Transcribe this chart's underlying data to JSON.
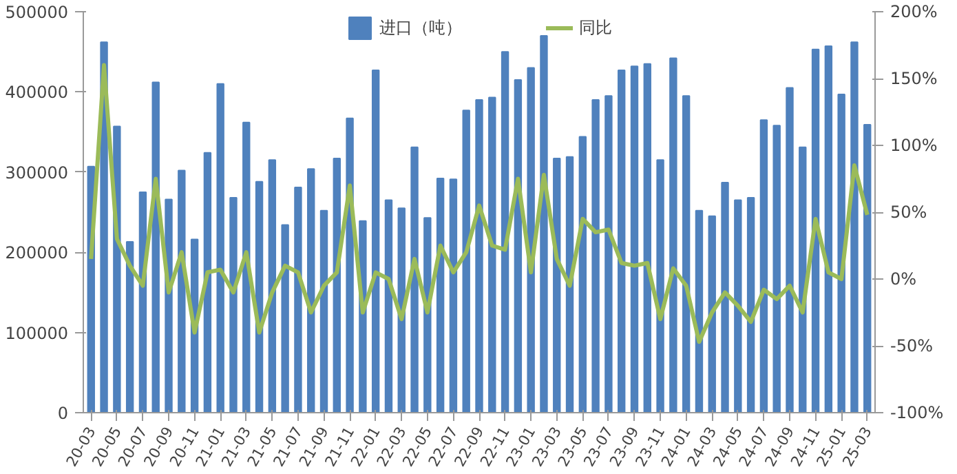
{
  "chart_data": {
    "type": "bar",
    "categories": [
      "20-03",
      null,
      "20-05",
      null,
      "20-07",
      null,
      "20-09",
      null,
      "20-11",
      null,
      "21-01",
      null,
      "21-03",
      null,
      "21-05",
      null,
      "21-07",
      null,
      "21-09",
      null,
      "21-11",
      null,
      "22-01",
      null,
      "22-03",
      null,
      "22-05",
      null,
      "22-07",
      null,
      "22-09",
      null,
      "22-11",
      null,
      "23-01",
      null,
      "23-03",
      null,
      "23-05",
      null,
      "23-07",
      null,
      "23-09",
      null,
      "23-11",
      null,
      "24-01",
      null,
      "24-03",
      null,
      "24-05",
      null,
      "24-07",
      null,
      "24-09",
      null,
      "24-11",
      null,
      "25-01",
      null,
      "25-03"
    ],
    "series": [
      {
        "name": "进口（吨）",
        "color": "#4f81bd",
        "values": [
          307000,
          462000,
          357000,
          213000,
          275000,
          412000,
          266000,
          302000,
          216000,
          324000,
          410000,
          268000,
          362000,
          288000,
          315000,
          234000,
          281000,
          304000,
          252000,
          317000,
          367000,
          239000,
          427000,
          265000,
          255000,
          331000,
          243000,
          292000,
          291000,
          377000,
          390000,
          393000,
          450000,
          415000,
          430000,
          470000,
          317000,
          319000,
          344000,
          390000,
          395000,
          427000,
          432000,
          435000,
          315000,
          442000,
          395000,
          252000,
          245000,
          287000,
          265000,
          268000,
          365000,
          358000,
          405000,
          331000,
          453000,
          457000,
          397000,
          462000,
          359000
        ]
      },
      {
        "name": "同比",
        "type": "line",
        "axis": "y2",
        "color": "#9bbb59",
        "values": [
          15,
          160,
          30,
          10,
          -5,
          75,
          -10,
          20,
          -40,
          5,
          7,
          -10,
          20,
          -40,
          -10,
          10,
          5,
          -25,
          -5,
          5,
          70,
          -25,
          5,
          0,
          -30,
          15,
          -25,
          25,
          5,
          20,
          55,
          25,
          22,
          75,
          5,
          78,
          15,
          -5,
          45,
          35,
          37,
          12,
          10,
          12,
          -30,
          8,
          -5,
          -47,
          -25,
          -10,
          -20,
          -32,
          -8,
          -15,
          -5,
          -25,
          45,
          5,
          0,
          85,
          48
        ]
      }
    ],
    "ylim": [
      0,
      500000
    ],
    "yticks": [
      0,
      100000,
      200000,
      300000,
      400000,
      500000
    ],
    "y2lim": [
      -100,
      200
    ],
    "y2ticks": [
      {
        "value": -100,
        "label": "-100%"
      },
      {
        "value": -50,
        "label": "-50%"
      },
      {
        "value": 0,
        "label": "0%"
      },
      {
        "value": 50,
        "label": "50%"
      },
      {
        "value": 100,
        "label": "100%"
      },
      {
        "value": 150,
        "label": "150%"
      },
      {
        "value": 200,
        "label": "200%"
      }
    ],
    "grid": false,
    "legend": "top",
    "marker": "none",
    "line_style": "solid"
  }
}
